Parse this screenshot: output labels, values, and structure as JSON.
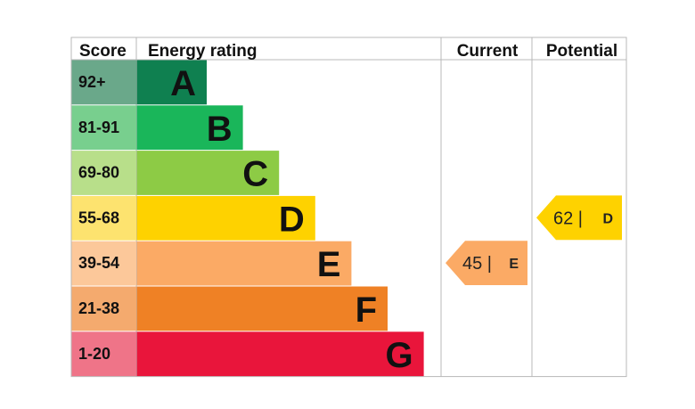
{
  "chart_data": {
    "type": "table",
    "headers": {
      "score": "Score",
      "rating": "Energy rating",
      "current": "Current",
      "potential": "Potential"
    },
    "bands": [
      {
        "letter": "A",
        "range": "92+",
        "color": "#0f8050",
        "score_bg": "#6aa88a"
      },
      {
        "letter": "B",
        "range": "81-91",
        "color": "#1ab65a",
        "score_bg": "#78cf8e"
      },
      {
        "letter": "C",
        "range": "69-80",
        "color": "#8dcb45",
        "score_bg": "#b8df8a"
      },
      {
        "letter": "D",
        "range": "55-68",
        "color": "#fed200",
        "score_bg": "#fde36f"
      },
      {
        "letter": "E",
        "range": "39-54",
        "color": "#fbaa65",
        "score_bg": "#fcc89a"
      },
      {
        "letter": "F",
        "range": "21-38",
        "color": "#ef8125",
        "score_bg": "#f4aa6e"
      },
      {
        "letter": "G",
        "range": "1-20",
        "color": "#e9153b",
        "score_bg": "#ef7488"
      }
    ],
    "current": {
      "value": 45,
      "band": "E",
      "label": "45 |",
      "color": "#fbaa65"
    },
    "potential": {
      "value": 62,
      "band": "D",
      "label": "62 |",
      "color": "#fed200"
    }
  }
}
